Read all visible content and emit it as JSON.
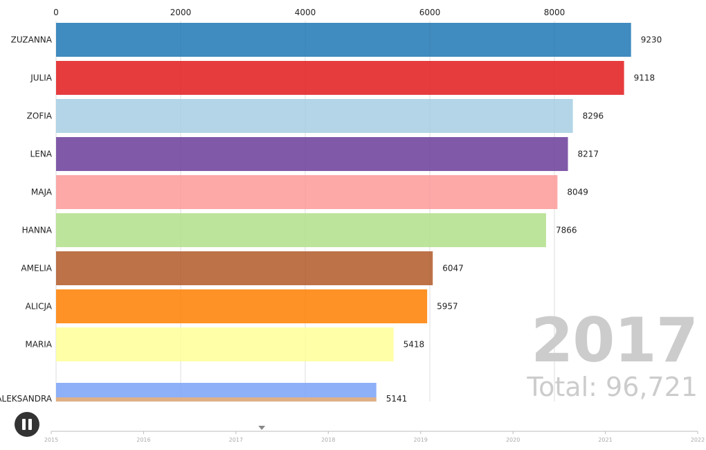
{
  "chart_data": {
    "type": "bar",
    "categories": [
      "ZUZANNA",
      "JULIA",
      "ZOFIA",
      "LENA",
      "MAJA",
      "HANNA",
      "AMELIA",
      "ALICJA",
      "MARIA",
      "ALEKSANDRA"
    ],
    "values": [
      9230,
      9118,
      8296,
      8217,
      8049,
      7866,
      6047,
      5957,
      5418,
      5141
    ],
    "value_labels": [
      "9230",
      "9118",
      "8296",
      "8217",
      "8049",
      "7866",
      "6047",
      "5957",
      "5418",
      "5141"
    ],
    "colors": [
      "#1f77b4",
      "#e31a1c",
      "#a6cee3",
      "#6a3d9a",
      "#fb9a99",
      "#b2df8a",
      "#b15928",
      "#ff7f00",
      "#ffff99",
      "#7aa2f8"
    ],
    "overlap_bar_color": "#e8b07a",
    "x_ticks": [
      0,
      2000,
      4000,
      6000,
      8000
    ],
    "x_tick_labels": [
      "0",
      "2000",
      "4000",
      "6000",
      "8000"
    ],
    "xlim": [
      0,
      10000
    ],
    "grid": true,
    "orientation": "horizontal"
  },
  "year_label": "2017",
  "total": {
    "prefix": "Total: ",
    "value": "96,721"
  },
  "timeline": {
    "labels": [
      "2015",
      "2016",
      "2017",
      "2018",
      "2019",
      "2020",
      "2021",
      "2022"
    ],
    "position_year": 2017.28
  },
  "controls": {
    "play_state": "playing",
    "icon": "pause-icon"
  }
}
